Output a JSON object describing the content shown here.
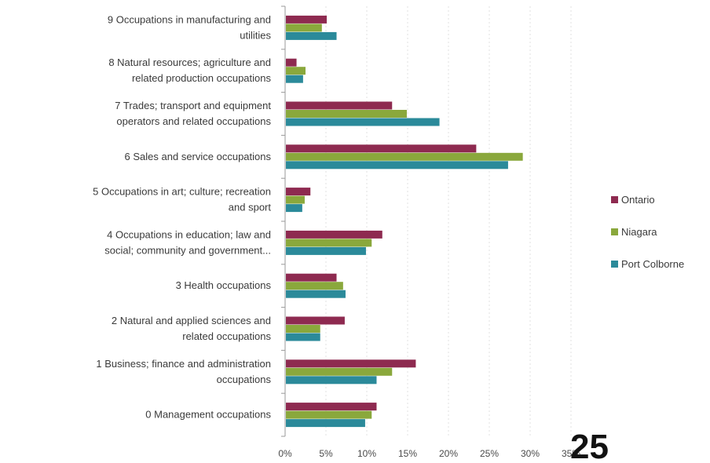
{
  "chart_data": {
    "type": "bar",
    "orientation": "horizontal",
    "categories": [
      [
        "9 Occupations in manufacturing and",
        "utilities"
      ],
      [
        "8 Natural resources; agriculture and",
        "related production occupations"
      ],
      [
        "7 Trades; transport and equipment",
        "operators and related occupations"
      ],
      [
        "6 Sales and service occupations"
      ],
      [
        "5 Occupations in art; culture; recreation",
        "and sport"
      ],
      [
        "4 Occupations in education; law and",
        "social; community and government..."
      ],
      [
        "3 Health occupations"
      ],
      [
        "2 Natural and applied sciences and",
        "related occupations"
      ],
      [
        "1 Business; finance and administration",
        "occupations"
      ],
      [
        "0 Management occupations"
      ]
    ],
    "series": [
      {
        "name": "Ontario",
        "color": "#8e2a50",
        "values": [
          5.1,
          1.4,
          13.1,
          23.4,
          3.1,
          11.9,
          6.3,
          7.3,
          16.0,
          11.2
        ]
      },
      {
        "name": "Niagara",
        "color": "#8aa83c",
        "values": [
          4.5,
          2.5,
          14.9,
          29.1,
          2.4,
          10.6,
          7.1,
          4.3,
          13.1,
          10.6
        ]
      },
      {
        "name": "Port Colborne",
        "color": "#2b8a9a",
        "values": [
          6.3,
          2.2,
          18.9,
          27.3,
          2.1,
          9.9,
          7.4,
          4.3,
          11.2,
          9.8
        ]
      }
    ],
    "x_ticks": [
      "0%",
      "5%",
      "10%",
      "15%",
      "20%",
      "25%",
      "30%",
      "35%"
    ],
    "xlim": [
      0,
      35
    ],
    "legend_position": "right",
    "grid": true
  },
  "page_number": "25"
}
